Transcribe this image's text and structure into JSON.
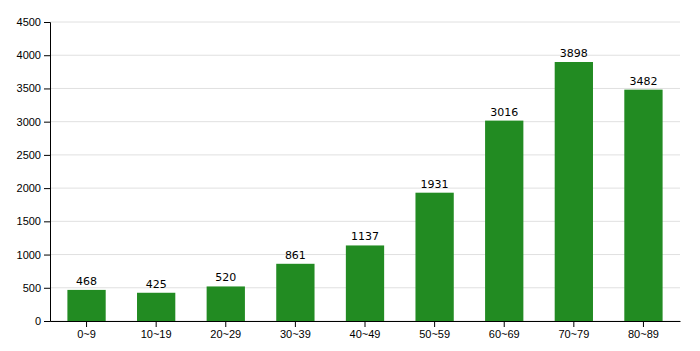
{
  "chart_data": {
    "type": "bar",
    "categories": [
      "0~9",
      "10~19",
      "20~29",
      "30~39",
      "40~49",
      "50~59",
      "60~69",
      "70~79",
      "80~89"
    ],
    "values": [
      468,
      425,
      520,
      861,
      1137,
      1931,
      3016,
      3898,
      3482
    ],
    "color": "#228B22",
    "ylim": [
      0,
      4500
    ],
    "yticks": [
      0,
      500,
      1000,
      1500,
      2000,
      2500,
      3000,
      3500,
      4000,
      4500
    ],
    "grid": true,
    "data_labels": true
  }
}
